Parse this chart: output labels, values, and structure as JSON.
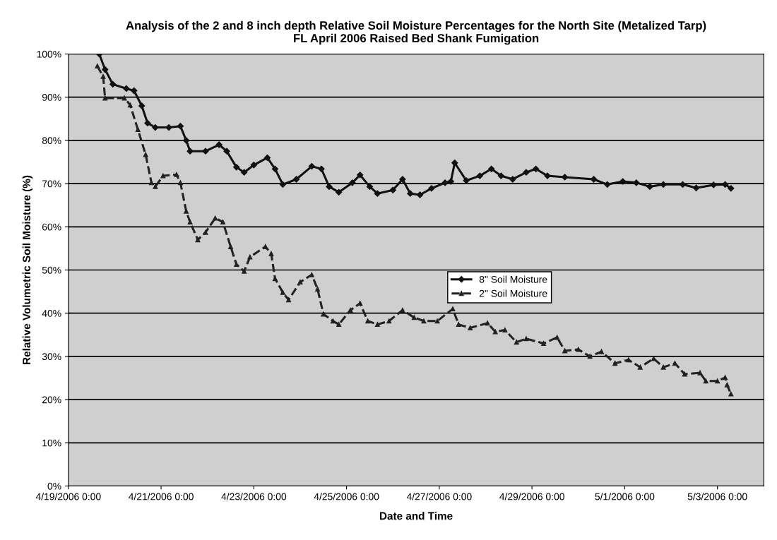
{
  "chart_data": {
    "type": "line",
    "title": "Analysis of the 2 and 8 inch depth Relative Soil Moisture Percentages for the North Site (Metalized Tarp)\nFL April 2006 Raised Bed Shank Fumigation",
    "xlabel": "Date and Time",
    "ylabel": "Relative Volumetric Soil Moisture (%)",
    "xlim": [
      "2006-04-19T00:00",
      "2006-05-04T00:00"
    ],
    "xticks": [
      {
        "value": "2006-04-19T00:00",
        "label": "4/19/2006 0:00"
      },
      {
        "value": "2006-04-21T00:00",
        "label": "4/21/2006 0:00"
      },
      {
        "value": "2006-04-23T00:00",
        "label": "4/23/2006 0:00"
      },
      {
        "value": "2006-04-25T00:00",
        "label": "4/25/2006 0:00"
      },
      {
        "value": "2006-04-27T00:00",
        "label": "4/27/2006 0:00"
      },
      {
        "value": "2006-04-29T00:00",
        "label": "4/29/2006 0:00"
      },
      {
        "value": "2006-05-01T00:00",
        "label": "5/1/2006 0:00"
      },
      {
        "value": "2006-05-03T00:00",
        "label": "5/3/2006 0:00"
      }
    ],
    "ylim": [
      0,
      100
    ],
    "yticks": [
      {
        "value": 0,
        "label": "0%"
      },
      {
        "value": 10,
        "label": "10%"
      },
      {
        "value": 20,
        "label": "20%"
      },
      {
        "value": 30,
        "label": "30%"
      },
      {
        "value": 40,
        "label": "40%"
      },
      {
        "value": 50,
        "label": "50%"
      },
      {
        "value": 60,
        "label": "60%"
      },
      {
        "value": 70,
        "label": "70%"
      },
      {
        "value": 80,
        "label": "80%"
      },
      {
        "value": 90,
        "label": "90%"
      },
      {
        "value": 100,
        "label": "100%"
      }
    ],
    "grid": "y",
    "legend": "center",
    "series": [
      {
        "name": "8\" Soil Moisture",
        "color": "#111111",
        "marker": "diamond",
        "line_style": "solid",
        "x": [
          "2006-04-19T16:00",
          "2006-04-19T19:00",
          "2006-04-19T23:00",
          "2006-04-20T06:00",
          "2006-04-20T10:00",
          "2006-04-20T14:00",
          "2006-04-20T17:00",
          "2006-04-20T21:00",
          "2006-04-21T04:00",
          "2006-04-21T10:00",
          "2006-04-21T13:00",
          "2006-04-21T15:00",
          "2006-04-21T23:00",
          "2006-04-22T06:00",
          "2006-04-22T10:00",
          "2006-04-22T15:00",
          "2006-04-22T19:00",
          "2006-04-23T00:00",
          "2006-04-23T07:00",
          "2006-04-23T11:00",
          "2006-04-23T15:00",
          "2006-04-23T22:00",
          "2006-04-24T06:00",
          "2006-04-24T11:00",
          "2006-04-24T15:00",
          "2006-04-24T20:00",
          "2006-04-25T03:00",
          "2006-04-25T07:00",
          "2006-04-25T12:00",
          "2006-04-25T16:00",
          "2006-04-26T00:00",
          "2006-04-26T05:00",
          "2006-04-26T09:00",
          "2006-04-26T14:00",
          "2006-04-26T20:00",
          "2006-04-27T03:00",
          "2006-04-27T06:00",
          "2006-04-27T08:00",
          "2006-04-27T14:00",
          "2006-04-27T21:00",
          "2006-04-28T03:00",
          "2006-04-28T08:00",
          "2006-04-28T14:00",
          "2006-04-28T21:00",
          "2006-04-29T02:00",
          "2006-04-29T08:00",
          "2006-04-29T17:00",
          "2006-04-30T08:00",
          "2006-04-30T15:00",
          "2006-04-30T23:00",
          "2006-05-01T06:00",
          "2006-05-01T13:00",
          "2006-05-01T20:00",
          "2006-05-02T06:00",
          "2006-05-02T13:00",
          "2006-05-02T22:00",
          "2006-05-03T04:00",
          "2006-05-03T07:00"
        ],
        "values": [
          100,
          96.4,
          93,
          92,
          91.5,
          88,
          84,
          83,
          83,
          83.3,
          80,
          77.5,
          77.5,
          79,
          77.5,
          73.8,
          72.6,
          74.3,
          76,
          73.4,
          69.8,
          71,
          74,
          73.4,
          69.3,
          68,
          70.2,
          72,
          69.3,
          67.7,
          68.5,
          71,
          67.7,
          67.4,
          68.9,
          70.2,
          70.5,
          74.8,
          70.7,
          71.8,
          73.4,
          71.8,
          71,
          72.6,
          73.4,
          71.8,
          71.5,
          71,
          69.8,
          70.5,
          70.2,
          69.3,
          69.8,
          69.8,
          69,
          69.7,
          69.8,
          68.9
        ]
      },
      {
        "name": "2\" Soil Moisture",
        "color": "#222222",
        "marker": "triangle",
        "line_style": "dashed",
        "x": [
          "2006-04-19T15:00",
          "2006-04-19T18:00",
          "2006-04-19T19:00",
          "2006-04-20T05:00",
          "2006-04-20T08:00",
          "2006-04-20T12:00",
          "2006-04-20T16:00",
          "2006-04-20T19:00",
          "2006-04-20T21:00",
          "2006-04-21T01:00",
          "2006-04-21T08:00",
          "2006-04-21T10:00",
          "2006-04-21T13:00",
          "2006-04-21T15:00",
          "2006-04-21T19:00",
          "2006-04-21T23:00",
          "2006-04-22T04:00",
          "2006-04-22T08:00",
          "2006-04-22T12:00",
          "2006-04-22T15:00",
          "2006-04-22T19:00",
          "2006-04-22T22:00",
          "2006-04-23T06:00",
          "2006-04-23T09:00",
          "2006-04-23T11:00",
          "2006-04-23T15:00",
          "2006-04-23T18:00",
          "2006-04-24T00:00",
          "2006-04-24T06:00",
          "2006-04-24T09:00",
          "2006-04-24T12:00",
          "2006-04-24T17:00",
          "2006-04-24T20:00",
          "2006-04-25T02:00",
          "2006-04-25T07:00",
          "2006-04-25T11:00",
          "2006-04-25T16:00",
          "2006-04-25T22:00",
          "2006-04-26T05:00",
          "2006-04-26T11:00",
          "2006-04-26T16:00",
          "2006-04-26T23:00",
          "2006-04-27T07:00",
          "2006-04-27T10:00",
          "2006-04-27T16:00",
          "2006-04-28T01:00",
          "2006-04-28T05:00",
          "2006-04-28T10:00",
          "2006-04-28T16:00",
          "2006-04-28T21:00",
          "2006-04-29T06:00",
          "2006-04-29T13:00",
          "2006-04-29T17:00",
          "2006-04-30T00:00",
          "2006-04-30T06:00",
          "2006-04-30T12:00",
          "2006-04-30T19:00",
          "2006-05-01T02:00",
          "2006-05-01T08:00",
          "2006-05-01T15:00",
          "2006-05-01T20:00",
          "2006-05-02T02:00",
          "2006-05-02T07:00",
          "2006-05-02T15:00",
          "2006-05-02T18:00",
          "2006-05-03T00:00",
          "2006-05-03T04:00",
          "2006-05-03T05:00",
          "2006-05-03T07:00"
        ],
        "values": [
          97.2,
          94.8,
          89.8,
          89.8,
          88.2,
          82.5,
          76.7,
          70.2,
          69.3,
          71.8,
          72.1,
          70.2,
          63.6,
          61.1,
          57,
          58.7,
          62,
          61.1,
          55.4,
          51.3,
          49.7,
          53,
          55.4,
          53.8,
          48,
          44.8,
          43.1,
          47.2,
          48.9,
          45.6,
          39.8,
          38.2,
          37.4,
          40.7,
          42.3,
          38.2,
          37.4,
          38.2,
          40.7,
          39,
          38.2,
          38.2,
          41,
          37.4,
          36.6,
          37.7,
          35.7,
          36.1,
          33.3,
          34.1,
          33,
          34.4,
          31.3,
          31.6,
          30,
          31.1,
          28.4,
          29.2,
          27.5,
          29.5,
          27.5,
          28.4,
          25.9,
          26.2,
          24.3,
          24.3,
          25.1,
          23.4,
          21.3
        ]
      }
    ]
  }
}
